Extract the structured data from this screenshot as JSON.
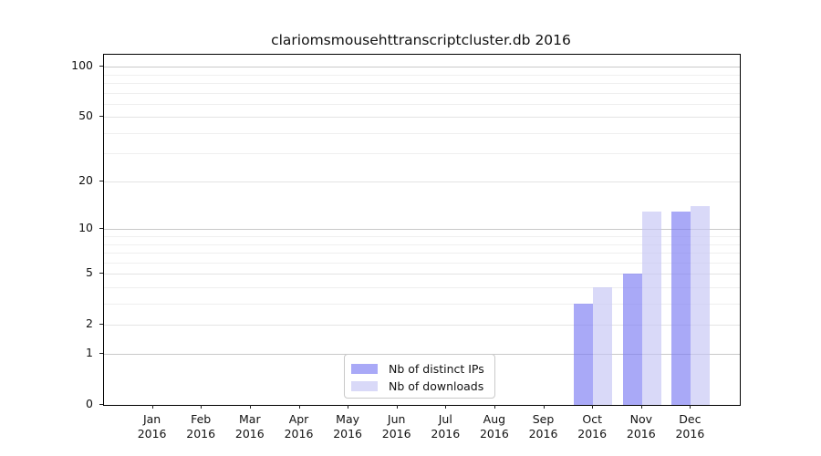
{
  "title": "clariomsmousehttranscriptcluster.db 2016",
  "chart_data": {
    "type": "bar",
    "title": "clariomsmousehttranscriptcluster.db 2016",
    "xlabel": "",
    "ylabel": "",
    "categories": [
      "Jan",
      "Feb",
      "Mar",
      "Apr",
      "May",
      "Jun",
      "Jul",
      "Aug",
      "Sep",
      "Oct",
      "Nov",
      "Dec"
    ],
    "category_sublabel": "2016",
    "series": [
      {
        "name": "Nb of distinct IPs",
        "color": "123,123,242",
        "alpha": 0.65,
        "values": [
          0,
          0,
          0,
          0,
          0,
          0,
          0,
          0,
          0,
          3,
          5,
          13
        ]
      },
      {
        "name": "Nb of downloads",
        "color": "196,196,244",
        "alpha": 0.65,
        "values": [
          0,
          0,
          0,
          0,
          0,
          0,
          0,
          0,
          0,
          4,
          13,
          14
        ]
      }
    ],
    "yscale": "log1p",
    "ylim": [
      0,
      118
    ],
    "yticks": [
      0,
      1,
      2,
      5,
      10,
      20,
      50,
      100
    ],
    "yticks_decade": [
      1,
      10,
      100
    ],
    "yticks_minor": [
      3,
      4,
      6,
      7,
      8,
      9,
      30,
      40,
      60,
      70,
      80,
      90
    ],
    "grid": true,
    "legend_position": "lower center"
  }
}
